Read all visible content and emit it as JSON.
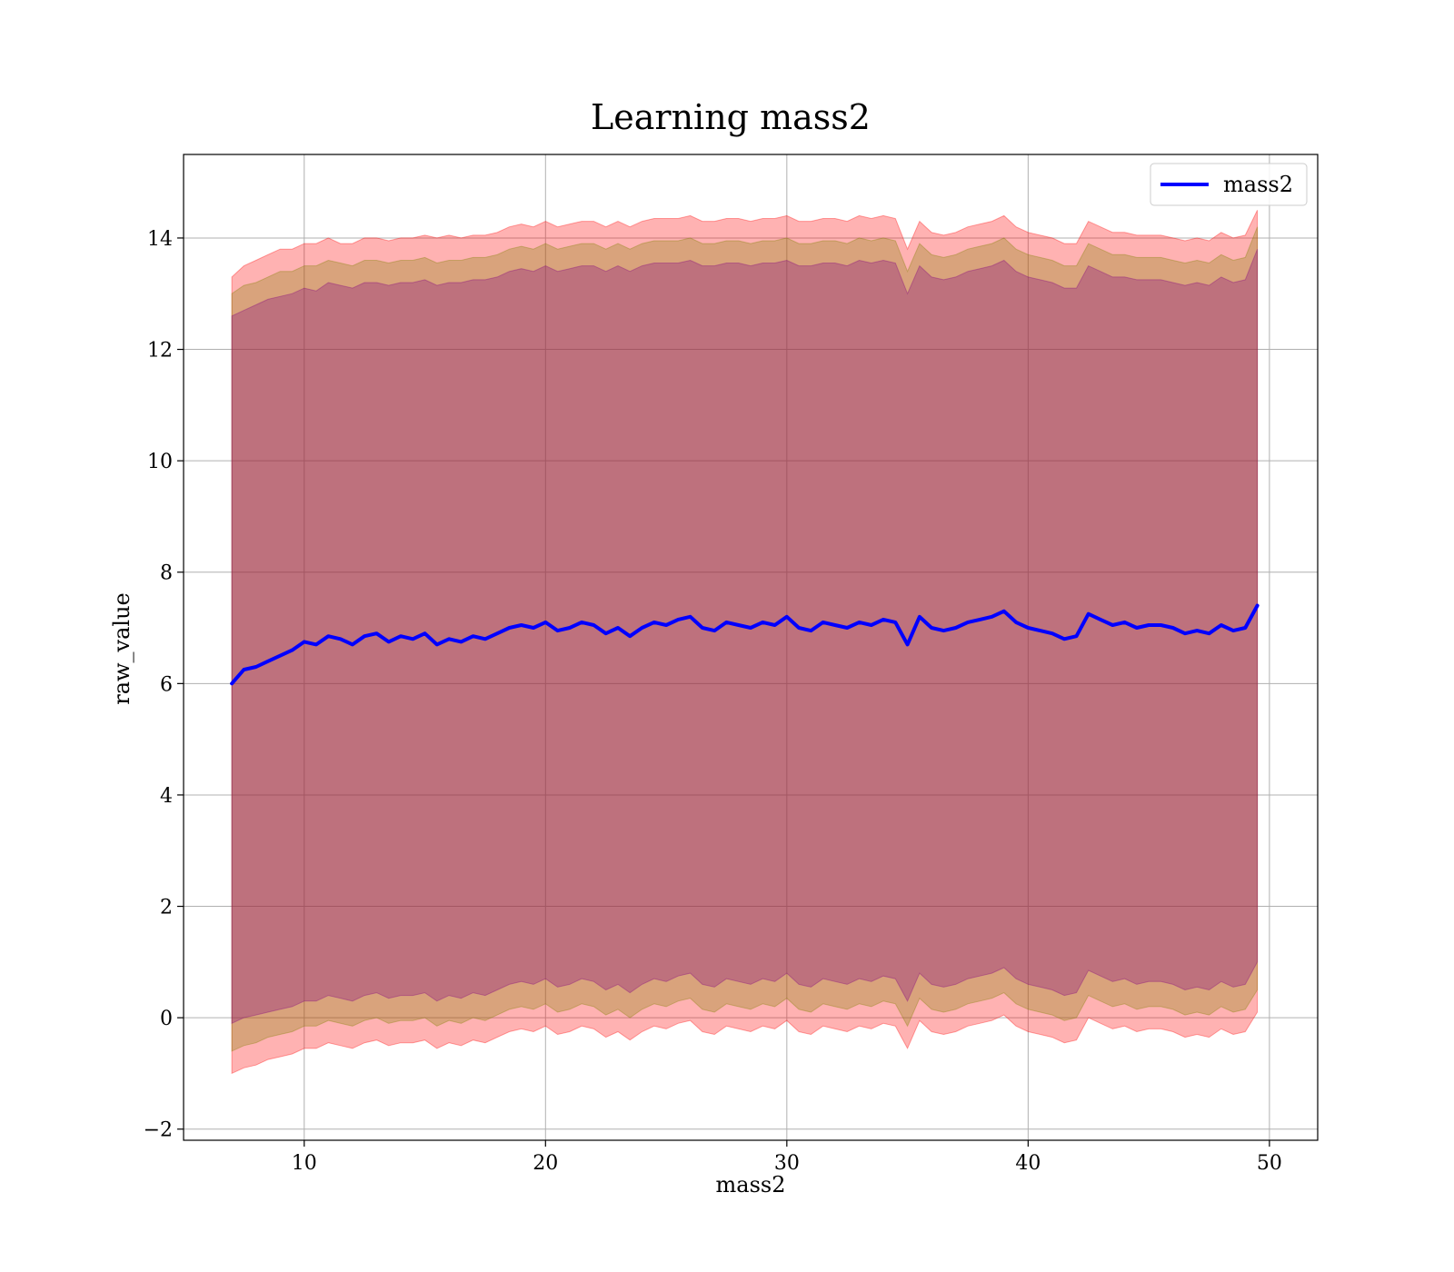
{
  "chart_data": {
    "type": "line",
    "title": "Learning mass2",
    "xlabel": "mass2",
    "ylabel": "raw_value",
    "xlim": [
      5,
      52
    ],
    "ylim": [
      -2.2,
      15.5
    ],
    "xticks": [
      10,
      20,
      30,
      40,
      50
    ],
    "yticks": [
      -2,
      0,
      2,
      4,
      6,
      8,
      10,
      12,
      14
    ],
    "xtick_labels": [
      "10",
      "20",
      "30",
      "40",
      "50"
    ],
    "ytick_labels": [
      "−2",
      "0",
      "2",
      "4",
      "6",
      "8",
      "10",
      "12",
      "14"
    ],
    "grid": true,
    "legend": {
      "position": "top-right",
      "entries": [
        "mass2"
      ]
    },
    "colors": {
      "line": "#0000ff",
      "outer_band": "#ff0000",
      "mid_band": "#808000",
      "inner_band": "#800080",
      "grid": "#b0b0b0"
    },
    "series": [
      {
        "name": "mass2",
        "x": [
          7.0,
          7.5,
          8.0,
          8.5,
          9.0,
          9.5,
          10.0,
          10.5,
          11.0,
          11.5,
          12.0,
          12.5,
          13.0,
          13.5,
          14.0,
          14.5,
          15.0,
          15.5,
          16.0,
          16.5,
          17.0,
          17.5,
          18.0,
          18.5,
          19.0,
          19.5,
          20.0,
          20.5,
          21.0,
          21.5,
          22.0,
          22.5,
          23.0,
          23.5,
          24.0,
          24.5,
          25.0,
          25.5,
          26.0,
          26.5,
          27.0,
          27.5,
          28.0,
          28.5,
          29.0,
          29.5,
          30.0,
          30.5,
          31.0,
          31.5,
          32.0,
          32.5,
          33.0,
          33.5,
          34.0,
          34.5,
          35.0,
          35.5,
          36.0,
          36.5,
          37.0,
          37.5,
          38.0,
          38.5,
          39.0,
          39.5,
          40.0,
          40.5,
          41.0,
          41.5,
          42.0,
          42.5,
          43.0,
          43.5,
          44.0,
          44.5,
          45.0,
          45.5,
          46.0,
          46.5,
          47.0,
          47.5,
          48.0,
          48.5,
          49.0,
          49.5
        ],
        "mean": [
          6.0,
          6.25,
          6.3,
          6.4,
          6.5,
          6.6,
          6.75,
          6.7,
          6.85,
          6.8,
          6.7,
          6.85,
          6.9,
          6.75,
          6.85,
          6.8,
          6.9,
          6.7,
          6.8,
          6.75,
          6.85,
          6.8,
          6.9,
          7.0,
          7.05,
          7.0,
          7.1,
          6.95,
          7.0,
          7.1,
          7.05,
          6.9,
          7.0,
          6.85,
          7.0,
          7.1,
          7.05,
          7.15,
          7.2,
          7.0,
          6.95,
          7.1,
          7.05,
          7.0,
          7.1,
          7.05,
          7.2,
          7.0,
          6.95,
          7.1,
          7.05,
          7.0,
          7.1,
          7.05,
          7.15,
          7.1,
          6.7,
          7.2,
          7.0,
          6.95,
          7.0,
          7.1,
          7.15,
          7.2,
          7.3,
          7.1,
          7.0,
          6.95,
          6.9,
          6.8,
          6.85,
          7.25,
          7.15,
          7.05,
          7.1,
          7.0,
          7.05,
          7.05,
          7.0,
          6.9,
          6.95,
          6.9,
          7.05,
          6.95,
          7.0,
          7.4
        ],
        "outer_upper": [
          13.3,
          13.5,
          13.6,
          13.7,
          13.8,
          13.8,
          13.9,
          13.9,
          14.0,
          13.9,
          13.9,
          14.0,
          14.0,
          13.95,
          14.0,
          14.0,
          14.05,
          14.0,
          14.05,
          14.0,
          14.05,
          14.05,
          14.1,
          14.2,
          14.25,
          14.2,
          14.3,
          14.2,
          14.25,
          14.3,
          14.3,
          14.2,
          14.3,
          14.2,
          14.3,
          14.35,
          14.35,
          14.35,
          14.4,
          14.3,
          14.3,
          14.35,
          14.35,
          14.3,
          14.35,
          14.35,
          14.4,
          14.3,
          14.3,
          14.35,
          14.35,
          14.3,
          14.4,
          14.35,
          14.4,
          14.35,
          13.8,
          14.3,
          14.1,
          14.05,
          14.1,
          14.2,
          14.25,
          14.3,
          14.4,
          14.2,
          14.1,
          14.05,
          14.0,
          13.9,
          13.9,
          14.3,
          14.2,
          14.1,
          14.1,
          14.05,
          14.05,
          14.05,
          14.0,
          13.95,
          14.0,
          13.95,
          14.1,
          14.0,
          14.05,
          14.5
        ],
        "mid_upper": [
          13.0,
          13.15,
          13.2,
          13.3,
          13.4,
          13.4,
          13.5,
          13.5,
          13.6,
          13.55,
          13.5,
          13.6,
          13.6,
          13.55,
          13.6,
          13.6,
          13.65,
          13.55,
          13.6,
          13.6,
          13.65,
          13.65,
          13.7,
          13.8,
          13.85,
          13.8,
          13.9,
          13.8,
          13.85,
          13.9,
          13.9,
          13.8,
          13.9,
          13.8,
          13.9,
          13.95,
          13.95,
          13.95,
          14.0,
          13.9,
          13.9,
          13.95,
          13.95,
          13.9,
          13.95,
          13.95,
          14.0,
          13.9,
          13.9,
          13.95,
          13.95,
          13.9,
          14.0,
          13.95,
          14.0,
          13.95,
          13.4,
          13.9,
          13.7,
          13.65,
          13.7,
          13.8,
          13.85,
          13.9,
          14.0,
          13.8,
          13.7,
          13.65,
          13.6,
          13.5,
          13.5,
          13.9,
          13.8,
          13.7,
          13.7,
          13.65,
          13.65,
          13.65,
          13.6,
          13.55,
          13.6,
          13.55,
          13.7,
          13.6,
          13.65,
          14.2
        ],
        "inner_upper": [
          12.6,
          12.7,
          12.8,
          12.9,
          12.95,
          13.0,
          13.1,
          13.05,
          13.2,
          13.15,
          13.1,
          13.2,
          13.2,
          13.15,
          13.2,
          13.2,
          13.25,
          13.15,
          13.2,
          13.2,
          13.25,
          13.25,
          13.3,
          13.4,
          13.45,
          13.4,
          13.5,
          13.4,
          13.45,
          13.5,
          13.5,
          13.4,
          13.5,
          13.4,
          13.5,
          13.55,
          13.55,
          13.55,
          13.6,
          13.5,
          13.5,
          13.55,
          13.55,
          13.5,
          13.55,
          13.55,
          13.6,
          13.5,
          13.5,
          13.55,
          13.55,
          13.5,
          13.6,
          13.55,
          13.6,
          13.55,
          13.0,
          13.5,
          13.3,
          13.25,
          13.3,
          13.4,
          13.45,
          13.5,
          13.6,
          13.4,
          13.3,
          13.25,
          13.2,
          13.1,
          13.1,
          13.5,
          13.4,
          13.3,
          13.3,
          13.25,
          13.25,
          13.25,
          13.2,
          13.15,
          13.2,
          13.15,
          13.3,
          13.2,
          13.25,
          13.8
        ],
        "inner_lower": [
          -0.1,
          0.0,
          0.05,
          0.1,
          0.15,
          0.2,
          0.3,
          0.3,
          0.4,
          0.35,
          0.3,
          0.4,
          0.45,
          0.35,
          0.4,
          0.4,
          0.45,
          0.3,
          0.4,
          0.35,
          0.45,
          0.4,
          0.5,
          0.6,
          0.65,
          0.6,
          0.7,
          0.55,
          0.6,
          0.7,
          0.65,
          0.5,
          0.6,
          0.45,
          0.6,
          0.7,
          0.65,
          0.75,
          0.8,
          0.6,
          0.55,
          0.7,
          0.65,
          0.6,
          0.7,
          0.65,
          0.8,
          0.6,
          0.55,
          0.7,
          0.65,
          0.6,
          0.7,
          0.65,
          0.75,
          0.7,
          0.3,
          0.8,
          0.6,
          0.55,
          0.6,
          0.7,
          0.75,
          0.8,
          0.9,
          0.7,
          0.6,
          0.55,
          0.5,
          0.4,
          0.45,
          0.85,
          0.75,
          0.65,
          0.7,
          0.6,
          0.65,
          0.65,
          0.6,
          0.5,
          0.55,
          0.5,
          0.65,
          0.55,
          0.6,
          1.0
        ],
        "mid_lower": [
          -0.6,
          -0.5,
          -0.45,
          -0.35,
          -0.3,
          -0.25,
          -0.15,
          -0.15,
          -0.05,
          -0.1,
          -0.15,
          -0.05,
          0.0,
          -0.1,
          -0.05,
          -0.05,
          0.0,
          -0.15,
          -0.05,
          -0.1,
          0.0,
          -0.05,
          0.05,
          0.15,
          0.2,
          0.15,
          0.25,
          0.1,
          0.15,
          0.25,
          0.2,
          0.05,
          0.15,
          0.0,
          0.15,
          0.25,
          0.2,
          0.3,
          0.35,
          0.15,
          0.1,
          0.25,
          0.2,
          0.15,
          0.25,
          0.2,
          0.35,
          0.15,
          0.1,
          0.25,
          0.2,
          0.15,
          0.25,
          0.2,
          0.3,
          0.25,
          -0.15,
          0.35,
          0.15,
          0.1,
          0.15,
          0.25,
          0.3,
          0.35,
          0.45,
          0.25,
          0.15,
          0.1,
          0.05,
          -0.05,
          0.0,
          0.4,
          0.3,
          0.2,
          0.25,
          0.15,
          0.2,
          0.2,
          0.15,
          0.05,
          0.1,
          0.05,
          0.2,
          0.1,
          0.15,
          0.5
        ],
        "outer_lower": [
          -1.0,
          -0.9,
          -0.85,
          -0.75,
          -0.7,
          -0.65,
          -0.55,
          -0.55,
          -0.45,
          -0.5,
          -0.55,
          -0.45,
          -0.4,
          -0.5,
          -0.45,
          -0.45,
          -0.4,
          -0.55,
          -0.45,
          -0.5,
          -0.4,
          -0.45,
          -0.35,
          -0.25,
          -0.2,
          -0.25,
          -0.15,
          -0.3,
          -0.25,
          -0.15,
          -0.2,
          -0.35,
          -0.25,
          -0.4,
          -0.25,
          -0.15,
          -0.2,
          -0.1,
          -0.05,
          -0.25,
          -0.3,
          -0.15,
          -0.2,
          -0.25,
          -0.15,
          -0.2,
          -0.05,
          -0.25,
          -0.3,
          -0.15,
          -0.2,
          -0.25,
          -0.15,
          -0.2,
          -0.1,
          -0.15,
          -0.55,
          -0.05,
          -0.25,
          -0.3,
          -0.25,
          -0.15,
          -0.1,
          -0.05,
          0.05,
          -0.15,
          -0.25,
          -0.3,
          -0.35,
          -0.45,
          -0.4,
          0.0,
          -0.1,
          -0.2,
          -0.15,
          -0.25,
          -0.2,
          -0.2,
          -0.25,
          -0.35,
          -0.3,
          -0.35,
          -0.2,
          -0.3,
          -0.25,
          0.1
        ]
      }
    ]
  }
}
